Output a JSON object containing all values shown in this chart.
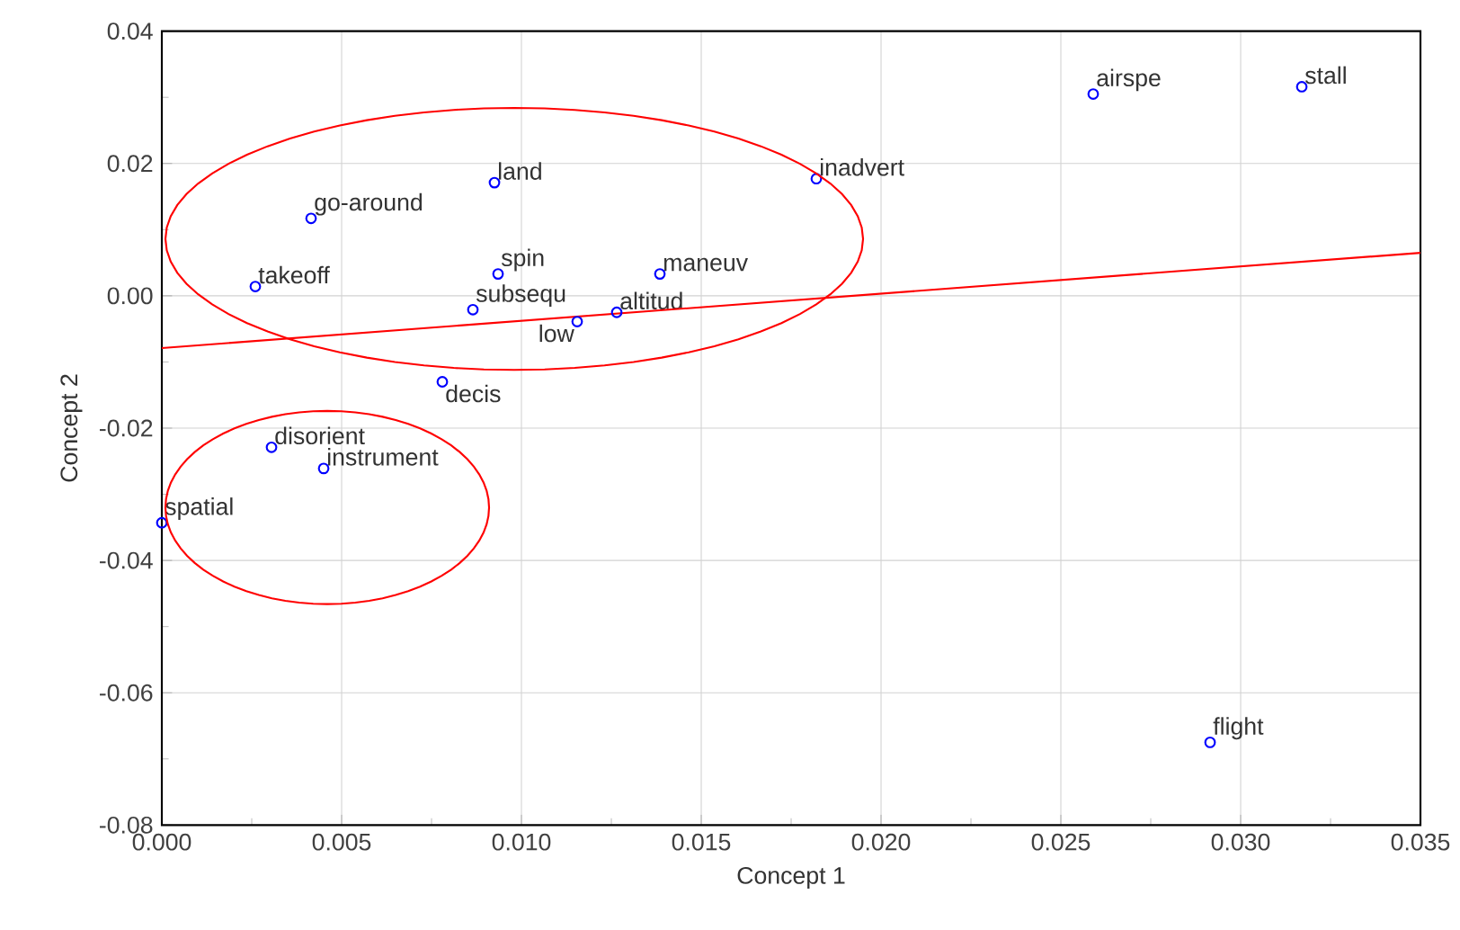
{
  "chart_data": {
    "type": "scatter",
    "xlabel": "Concept 1",
    "ylabel": "Concept 2",
    "xlim": [
      0,
      0.035
    ],
    "ylim": [
      -0.08,
      0.04
    ],
    "xticks": [
      {
        "value": 0,
        "label": "0.000"
      },
      {
        "value": 0.005,
        "label": "0.005"
      },
      {
        "value": 0.01,
        "label": "0.010"
      },
      {
        "value": 0.015,
        "label": "0.015"
      },
      {
        "value": 0.02,
        "label": "0.020"
      },
      {
        "value": 0.025,
        "label": "0.025"
      },
      {
        "value": 0.03,
        "label": "0.030"
      },
      {
        "value": 0.035,
        "label": "0.035"
      }
    ],
    "yticks": [
      {
        "value": -0.08,
        "label": "-0.08"
      },
      {
        "value": -0.06,
        "label": "-0.06"
      },
      {
        "value": -0.04,
        "label": "-0.04"
      },
      {
        "value": -0.02,
        "label": "-0.02"
      },
      {
        "value": 0,
        "label": "0.00"
      },
      {
        "value": 0.02,
        "label": "0.02"
      },
      {
        "value": 0.04,
        "label": "0.04"
      }
    ],
    "grid": true,
    "marker": "circle",
    "series": [
      {
        "color": "#0000ff",
        "x": [
          0.0026,
          0.00415,
          0.00925,
          0.00935,
          0.00865,
          0.01155,
          0.01265,
          0.01385,
          0.0182,
          0.0078,
          0.00305,
          0.0045,
          0.0,
          0.0259,
          0.0317,
          0.02915
        ],
        "values": [
          0.0014,
          0.0117,
          0.0171,
          0.0033,
          -0.0021,
          -0.0039,
          -0.0025,
          0.0033,
          0.0177,
          -0.013,
          -0.0229,
          -0.0261,
          -0.0343,
          0.0305,
          0.0316,
          -0.0675
        ],
        "value_labels": [
          "takeoff",
          "go-around",
          "land",
          "spin",
          "subsequ",
          "low",
          "altitud",
          "maneuv",
          "inadvert",
          "decis",
          "disorient",
          "instrument",
          "spatial",
          "airspe",
          "stall",
          "flight"
        ]
      },
      {
        "type": "line",
        "color": "#ff0000",
        "marker": "none",
        "x": [
          0,
          0.035
        ],
        "values": [
          -0.0079,
          0.0065
        ]
      }
    ]
  }
}
